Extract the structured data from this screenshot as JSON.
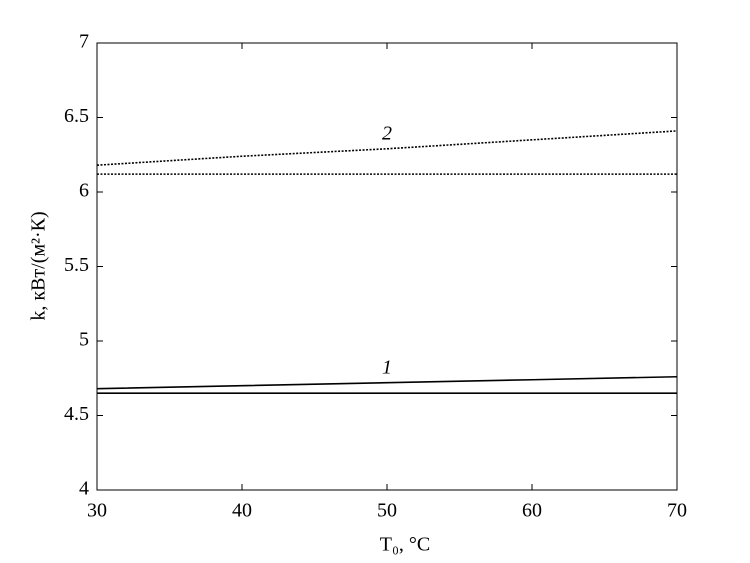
{
  "chart_data": {
    "type": "line",
    "xlabel": "T₀, °C",
    "ylabel": "k, кВт/(м²·К)",
    "x": [
      30,
      40,
      50,
      60,
      70
    ],
    "series": [
      {
        "name": "1",
        "color": "#000000",
        "style": "solid",
        "values": [
          4.68,
          4.7,
          4.72,
          4.74,
          4.76
        ]
      },
      {
        "color": "#000000",
        "style": "solid",
        "values": [
          4.65,
          4.65,
          4.65,
          4.65,
          4.65
        ]
      },
      {
        "name": "2",
        "color": "#000000",
        "style": "dotted",
        "values": [
          6.18,
          6.24,
          6.29,
          6.35,
          6.41
        ]
      },
      {
        "color": "#000000",
        "style": "dotted",
        "values": [
          6.12,
          6.12,
          6.12,
          6.12,
          6.12
        ]
      }
    ],
    "xlim": [
      30,
      70
    ],
    "xticks": [
      30,
      40,
      50,
      60,
      70
    ],
    "ylim": [
      4,
      7
    ],
    "yticks": [
      4,
      4.5,
      5,
      5.5,
      6,
      6.5,
      7
    ],
    "grid": false
  }
}
